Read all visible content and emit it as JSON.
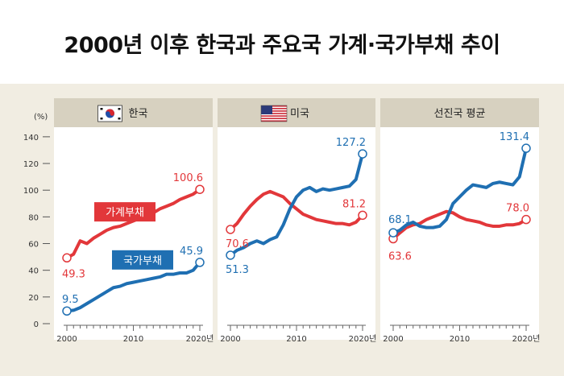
{
  "title": "2000년 이후 한국과 주요국 가계·국가부채 추이",
  "y_unit": "(%)",
  "y_ticks": [
    "0",
    "20",
    "40",
    "60",
    "80",
    "100",
    "120",
    "140"
  ],
  "x_ticks": [
    "2000",
    "2010",
    "2020년"
  ],
  "colors": {
    "household": "#e2373a",
    "government": "#1f6fb2",
    "panel_bg": "#ffffff",
    "header_bg": "#d7d1c0",
    "figure_bg": "#f1ede2"
  },
  "chart_data": [
    {
      "type": "line",
      "title": "한국",
      "icon": "korea-flag-icon",
      "x": [
        2000,
        2001,
        2002,
        2003,
        2004,
        2005,
        2006,
        2007,
        2008,
        2009,
        2010,
        2011,
        2012,
        2013,
        2014,
        2015,
        2016,
        2017,
        2018,
        2019,
        2020
      ],
      "ylim": [
        0,
        140
      ],
      "xlim": [
        2000,
        2020
      ],
      "series": [
        {
          "name": "가계부채",
          "role": "household",
          "values": [
            49.3,
            52,
            62,
            60,
            64,
            67,
            70,
            72,
            73,
            75,
            77,
            79,
            81,
            83,
            86,
            88,
            90,
            93,
            95,
            97,
            100.6
          ]
        },
        {
          "name": "국가부채",
          "role": "government",
          "values": [
            9.5,
            10,
            12,
            15,
            18,
            21,
            24,
            27,
            28,
            30,
            31,
            32,
            33,
            34,
            35,
            37,
            37,
            38,
            38,
            40,
            45.9
          ]
        }
      ],
      "annotations": [
        {
          "series": 0,
          "index": 0,
          "text": "49.3"
        },
        {
          "series": 0,
          "index": 20,
          "text": "100.6"
        },
        {
          "series": 1,
          "index": 0,
          "text": "9.5"
        },
        {
          "series": 1,
          "index": 20,
          "text": "45.9"
        }
      ]
    },
    {
      "type": "line",
      "title": "미국",
      "icon": "us-flag-icon",
      "x": [
        2000,
        2001,
        2002,
        2003,
        2004,
        2005,
        2006,
        2007,
        2008,
        2009,
        2010,
        2011,
        2012,
        2013,
        2014,
        2015,
        2016,
        2017,
        2018,
        2019,
        2020
      ],
      "ylim": [
        0,
        140
      ],
      "xlim": [
        2000,
        2020
      ],
      "series": [
        {
          "name": "",
          "role": "household",
          "values": [
            70.6,
            75,
            82,
            88,
            93,
            97,
            99,
            97,
            95,
            90,
            86,
            82,
            80,
            78,
            77,
            76,
            75,
            75,
            74,
            76,
            81.2
          ]
        },
        {
          "name": "",
          "role": "government",
          "values": [
            51.3,
            55,
            57,
            60,
            62,
            60,
            63,
            65,
            74,
            86,
            95,
            100,
            102,
            99,
            101,
            100,
            101,
            102,
            103,
            108,
            127.2
          ]
        }
      ],
      "annotations": [
        {
          "series": 0,
          "index": 0,
          "text": "70.6"
        },
        {
          "series": 0,
          "index": 20,
          "text": "81.2"
        },
        {
          "series": 1,
          "index": 0,
          "text": "51.3"
        },
        {
          "series": 1,
          "index": 20,
          "text": "127.2"
        }
      ]
    },
    {
      "type": "line",
      "title": "선진국 평균",
      "icon": "",
      "x": [
        2000,
        2001,
        2002,
        2003,
        2004,
        2005,
        2006,
        2007,
        2008,
        2009,
        2010,
        2011,
        2012,
        2013,
        2014,
        2015,
        2016,
        2017,
        2018,
        2019,
        2020
      ],
      "ylim": [
        0,
        140
      ],
      "xlim": [
        2000,
        2020
      ],
      "series": [
        {
          "name": "",
          "role": "household",
          "values": [
            63.6,
            68,
            72,
            74,
            75,
            78,
            80,
            82,
            84,
            83,
            80,
            78,
            77,
            76,
            74,
            73,
            73,
            74,
            74,
            75,
            78.0
          ]
        },
        {
          "name": "",
          "role": "government",
          "values": [
            68.1,
            70,
            74,
            76,
            73,
            72,
            72,
            73,
            78,
            90,
            95,
            100,
            104,
            103,
            102,
            105,
            106,
            105,
            104,
            110,
            131.4
          ]
        }
      ],
      "annotations": [
        {
          "series": 0,
          "index": 0,
          "text": "63.6"
        },
        {
          "series": 0,
          "index": 20,
          "text": "78.0"
        },
        {
          "series": 1,
          "index": 0,
          "text": "68.1"
        },
        {
          "series": 1,
          "index": 20,
          "text": "131.4"
        }
      ]
    }
  ]
}
